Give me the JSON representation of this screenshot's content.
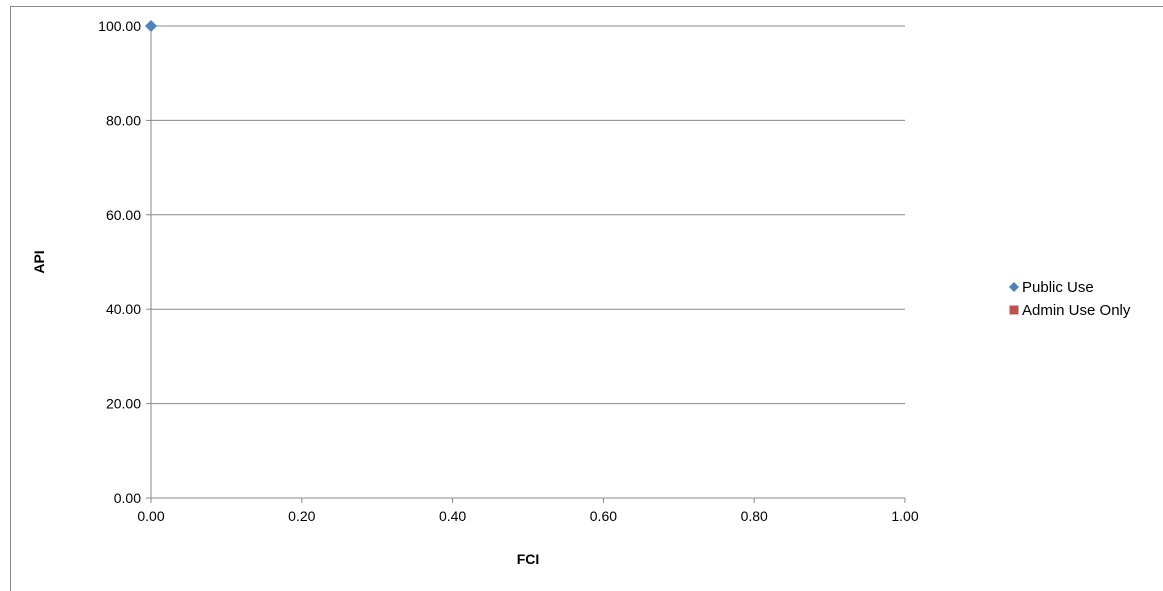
{
  "chart_data": {
    "type": "scatter",
    "title": "",
    "xlabel": "FCI",
    "ylabel": "API",
    "xlim": [
      0,
      1
    ],
    "ylim": [
      0,
      100
    ],
    "xticks": [
      "0.00",
      "0.20",
      "0.40",
      "0.60",
      "0.80",
      "1.00"
    ],
    "yticks": [
      "0.00",
      "20.00",
      "40.00",
      "60.00",
      "80.00",
      "100.00"
    ],
    "grid": "horizontal",
    "legend_position": "right",
    "series": [
      {
        "name": "Public Use",
        "marker": "diamond",
        "color": "#4F81BD",
        "points": [
          {
            "x": 0.0,
            "y": 100.0
          }
        ]
      },
      {
        "name": "Admin Use Only",
        "marker": "square",
        "color": "#C0504D",
        "points": []
      }
    ]
  }
}
